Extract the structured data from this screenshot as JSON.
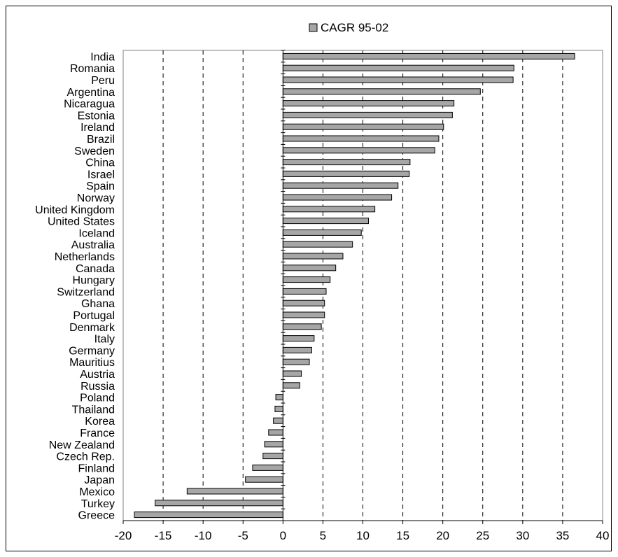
{
  "chart_data": {
    "type": "bar",
    "orientation": "horizontal",
    "legend": {
      "position": "top",
      "label": "CAGR 95-02",
      "color": "#a6a6a6"
    },
    "series": [
      {
        "name": "CAGR 95-02",
        "color": "#a6a6a6"
      }
    ],
    "xlim": [
      -20,
      40
    ],
    "x_ticks": [
      -20,
      -15,
      -10,
      -5,
      0,
      5,
      10,
      15,
      20,
      25,
      30,
      35,
      40
    ],
    "x_tick_labels": [
      "-20",
      "-15",
      "-10",
      "-5",
      "0",
      "5",
      "10",
      "15",
      "20",
      "25",
      "30",
      "35",
      "40"
    ],
    "vertical_grid": "dashed",
    "categories": [
      "India",
      "Romania",
      "Peru",
      "Argentina",
      "Nicaragua",
      "Estonia",
      "Ireland",
      "Brazil",
      "Sweden",
      "China",
      "Israel",
      "Spain",
      "Norway",
      "United Kingdom",
      "United States",
      "Iceland",
      "Australia",
      "Netherlands",
      "Canada",
      "Hungary",
      "Switzerland",
      "Ghana",
      "Portugal",
      "Denmark",
      "Italy",
      "Germany",
      "Mauritius",
      "Austria",
      "Russia",
      "Poland",
      "Thailand",
      "Korea",
      "France",
      "New Zealand",
      "Czech Rep.",
      "Finland",
      "Japan",
      "Mexico",
      "Turkey",
      "Greece"
    ],
    "values": [
      36.5,
      28.9,
      28.8,
      24.7,
      21.4,
      21.2,
      20.1,
      19.5,
      19.0,
      15.9,
      15.8,
      14.4,
      13.6,
      11.5,
      10.7,
      9.8,
      8.7,
      7.5,
      6.6,
      5.9,
      5.4,
      5.2,
      5.2,
      4.8,
      3.9,
      3.6,
      3.3,
      2.3,
      2.1,
      -0.9,
      -1.0,
      -1.2,
      -1.8,
      -2.3,
      -2.5,
      -3.8,
      -4.7,
      -12.0,
      -16.0,
      -18.6
    ]
  }
}
